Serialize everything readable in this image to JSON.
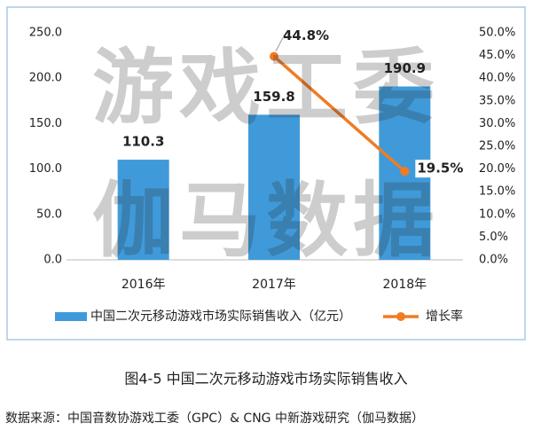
{
  "chart_data": {
    "type": "bar",
    "categories": [
      "2016年",
      "2017年",
      "2018年"
    ],
    "series": [
      {
        "name": "中国二次元移动游戏市场实际销售收入（亿元）",
        "type": "bar",
        "color": "#409ad9",
        "values": [
          110.3,
          159.8,
          190.9
        ]
      },
      {
        "name": "增长率",
        "type": "line",
        "axis": "y2",
        "color": "#f07c22",
        "values": [
          null,
          44.8,
          19.5
        ],
        "value_labels": [
          null,
          "44.8%",
          "19.5%"
        ]
      }
    ],
    "ylim": [
      0,
      250
    ],
    "yticks": [
      {
        "value": 0,
        "label": "0.0"
      },
      {
        "value": 50,
        "label": "50.0"
      },
      {
        "value": 100,
        "label": "100.0"
      },
      {
        "value": 150,
        "label": "150.0"
      },
      {
        "value": 200,
        "label": "200.0"
      },
      {
        "value": 250,
        "label": "250.0"
      }
    ],
    "y2lim": [
      0,
      50
    ],
    "y2ticks": [
      {
        "value": 0,
        "label": "0.0%"
      },
      {
        "value": 5,
        "label": "5.0%"
      },
      {
        "value": 10,
        "label": "10.0%"
      },
      {
        "value": 15,
        "label": "15.0%"
      },
      {
        "value": 20,
        "label": "20.0%"
      },
      {
        "value": 25,
        "label": "25.0%"
      },
      {
        "value": 30,
        "label": "30.0%"
      },
      {
        "value": 35,
        "label": "35.0%"
      },
      {
        "value": 40,
        "label": "40.0%"
      },
      {
        "value": 45,
        "label": "45.0%"
      },
      {
        "value": 50,
        "label": "50.0%"
      }
    ],
    "legend": "bottom",
    "watermark": [
      "游戏工委",
      "伽马数据"
    ],
    "caption": "图4-5  中国二次元移动游戏市场实际销售收入",
    "source": "数据来源：中国音数协游戏工委（GPC）& CNG 中新游戏研究（伽马数据）"
  }
}
